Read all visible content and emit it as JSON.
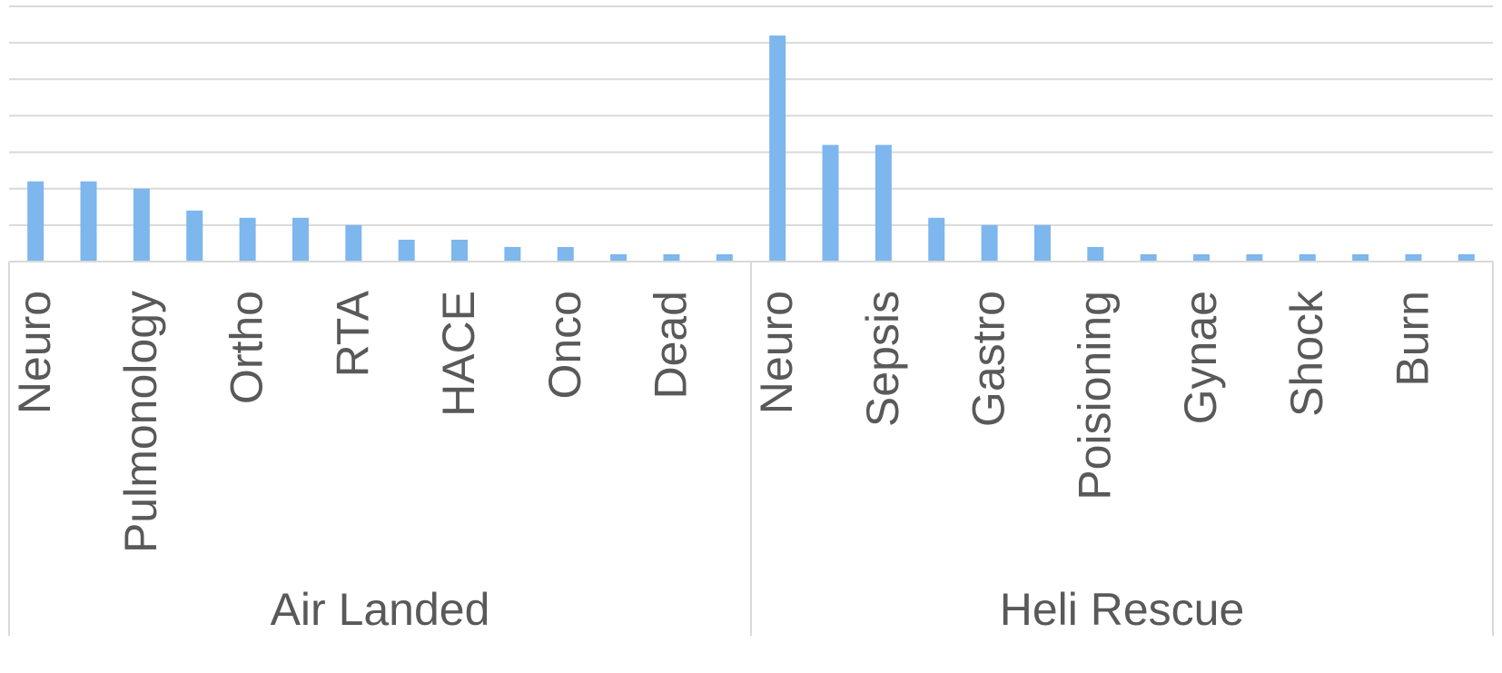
{
  "chart_data": {
    "type": "bar",
    "groups": [
      {
        "name": "Air Landed",
        "categories": [
          "Neuro",
          "",
          "Pulmonology",
          "",
          "Ortho",
          "",
          "RTA",
          "",
          "HACE",
          "",
          "Onco",
          "",
          "Dead",
          ""
        ],
        "values": [
          11,
          11,
          10,
          7,
          6,
          6,
          5,
          3,
          3,
          2,
          2,
          1,
          1,
          1
        ]
      },
      {
        "name": "Heli Rescue",
        "categories": [
          "Neuro",
          "",
          "Sepsis",
          "",
          "Gastro",
          "",
          "Poisioning",
          "",
          "Gynae",
          "",
          "Shock",
          "",
          "Burn",
          ""
        ],
        "values": [
          31,
          16,
          16,
          6,
          5,
          5,
          2,
          1,
          1,
          1,
          1,
          1,
          1,
          1
        ]
      }
    ],
    "ylim": [
      0,
      35
    ],
    "grid": true,
    "colors": {
      "bar": "#7eb6ee",
      "grid": "#d9d9d9",
      "text": "#595959"
    }
  }
}
